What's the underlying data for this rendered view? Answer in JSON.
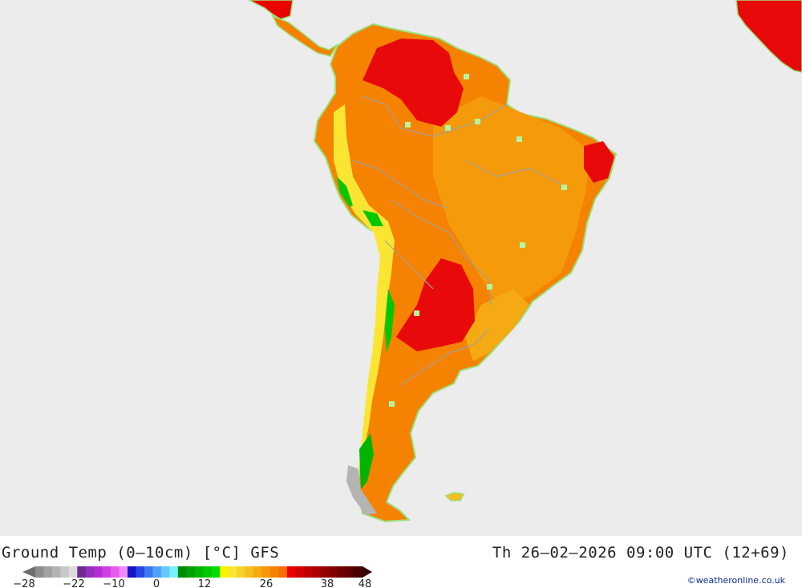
{
  "title": {
    "left": "Ground Temp (0–10cm) [°C] GFS",
    "right": "Th 26–02–2026 09:00 UTC (12+69)"
  },
  "legend": {
    "colors": [
      "#8c8c8c",
      "#a0a0a0",
      "#b4b4b4",
      "#c8c8c8",
      "#dcdcdc",
      "#6e2a8c",
      "#962dbe",
      "#b42dd2",
      "#d23ce6",
      "#e65af0",
      "#f08cfa",
      "#1414c8",
      "#2846e6",
      "#3c78f0",
      "#50a0f5",
      "#64c8fa",
      "#78f0ff",
      "#008c00",
      "#00a000",
      "#00b400",
      "#00c800",
      "#00dc00",
      "#f5f500",
      "#fae632",
      "#f5d228",
      "#f5be1e",
      "#f5aa14",
      "#f5960a",
      "#f58200",
      "#f56e00",
      "#eb0000",
      "#d20000",
      "#be0000",
      "#aa0000",
      "#960000",
      "#820000",
      "#6e0000",
      "#5a0000",
      "#460000"
    ],
    "arrow_left": "#6e6e6e",
    "arrow_right": "#320000",
    "ticks": [
      "-28",
      "-22",
      "-10",
      "0",
      "12",
      "26",
      "38",
      "48"
    ]
  },
  "credit": "©weatheronline.co.uk",
  "map": {
    "sea": "#ececec",
    "border": "#a0a0a0",
    "coast": "#9ae07a",
    "zones": {
      "hot": "#f58200",
      "warm": "#f59a0a",
      "mild": "#f5be1e",
      "very_hot": "#e80a0a",
      "cool": "#fae632",
      "cold": "#00c800",
      "snow": "#b4b4b4",
      "dot": "#b4f5a0"
    }
  }
}
